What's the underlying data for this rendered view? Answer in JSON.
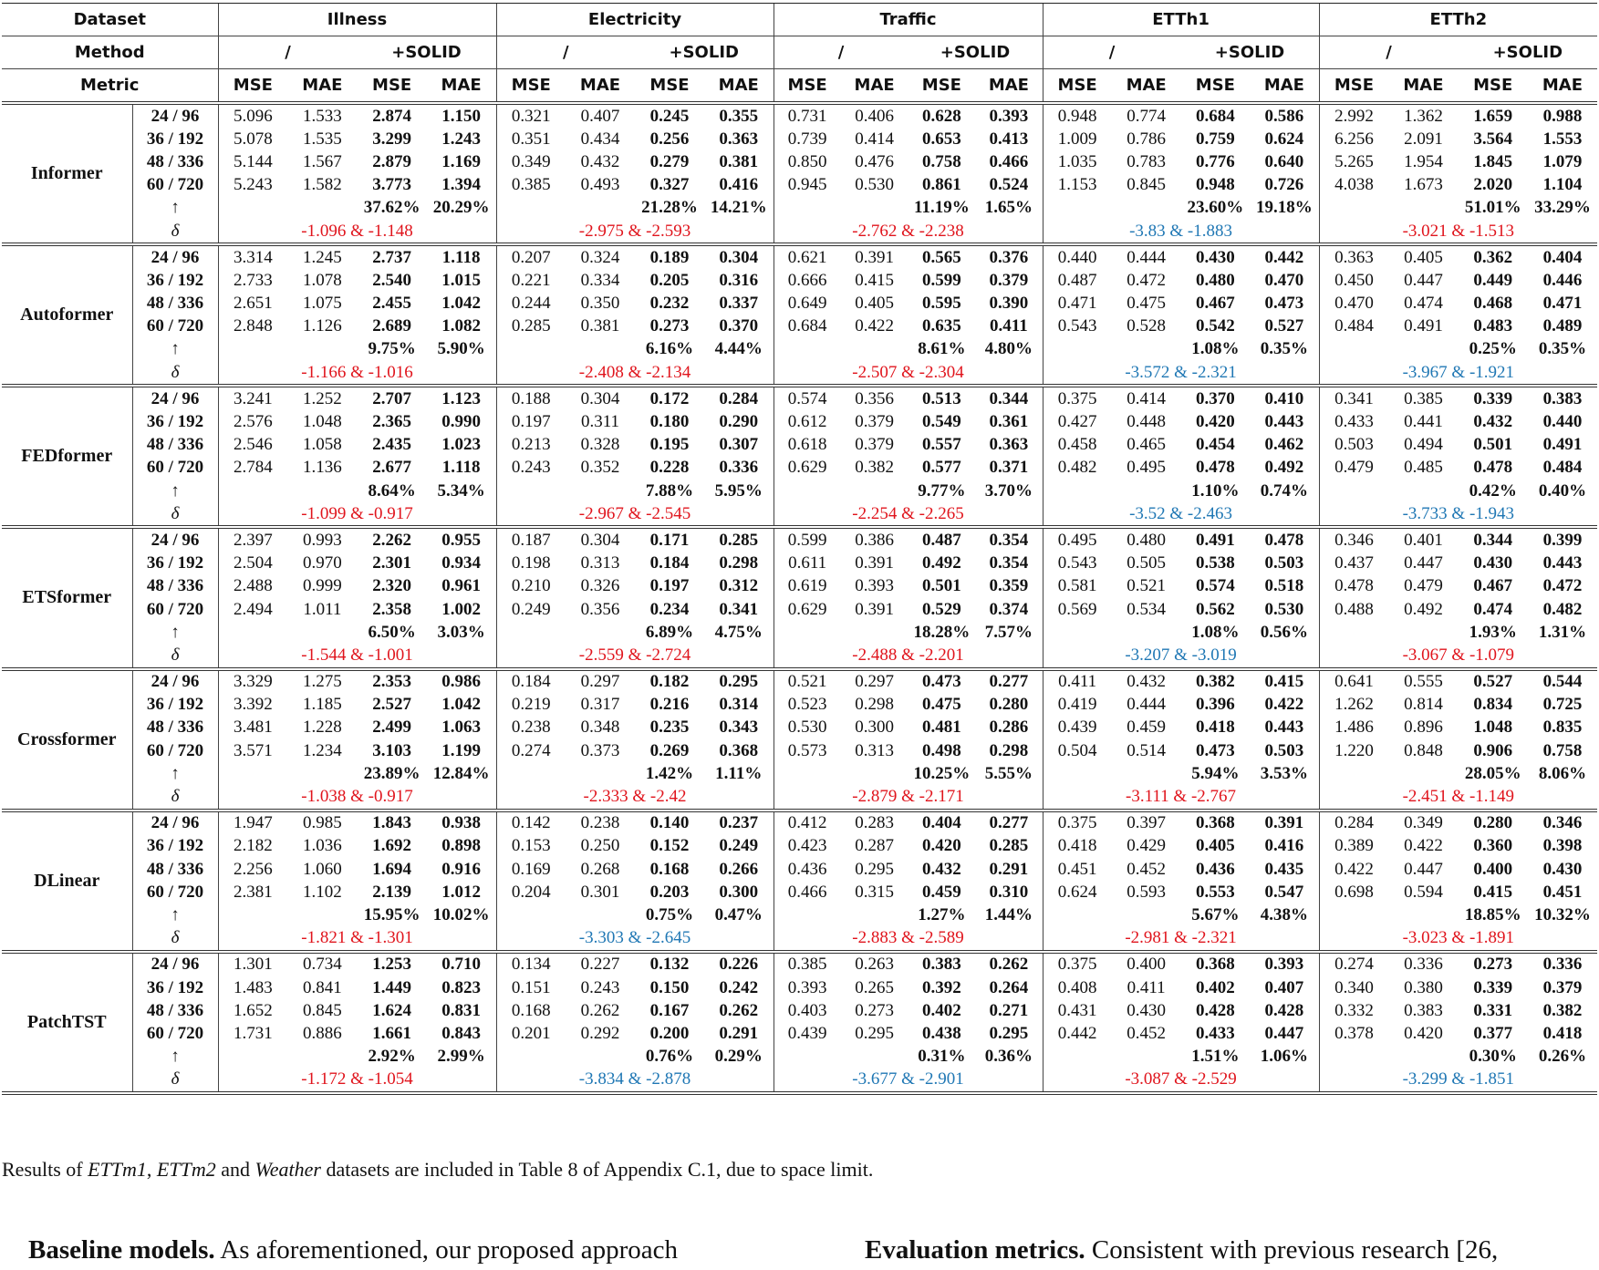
{
  "table": {
    "header": {
      "dataset_label": "Dataset",
      "datasets": [
        "Illness",
        "Electricity",
        "Traffic",
        "ETTh1",
        "ETTh2"
      ],
      "method_label": "Method",
      "methods": [
        "/",
        "+SOLID"
      ],
      "metric_label": "Metric",
      "metrics": [
        "MSE",
        "MAE",
        "MSE",
        "MAE"
      ]
    },
    "horizons": [
      "24 / 96",
      "36 / 192",
      "48 / 336",
      "60 / 720"
    ],
    "improve_symbol": "↑",
    "delta_symbol": "δ",
    "delta_colors": {
      "red": "#e0141c",
      "blue": "#1f77b4"
    },
    "models": [
      {
        "name": "Informer",
        "rows": [
          [
            "5.096",
            "1.533",
            "2.874",
            "1.150",
            "0.321",
            "0.407",
            "0.245",
            "0.355",
            "0.731",
            "0.406",
            "0.628",
            "0.393",
            "0.948",
            "0.774",
            "0.684",
            "0.586",
            "2.992",
            "1.362",
            "1.659",
            "0.988"
          ],
          [
            "5.078",
            "1.535",
            "3.299",
            "1.243",
            "0.351",
            "0.434",
            "0.256",
            "0.363",
            "0.739",
            "0.414",
            "0.653",
            "0.413",
            "1.009",
            "0.786",
            "0.759",
            "0.624",
            "6.256",
            "2.091",
            "3.564",
            "1.553"
          ],
          [
            "5.144",
            "1.567",
            "2.879",
            "1.169",
            "0.349",
            "0.432",
            "0.279",
            "0.381",
            "0.850",
            "0.476",
            "0.758",
            "0.466",
            "1.035",
            "0.783",
            "0.776",
            "0.640",
            "5.265",
            "1.954",
            "1.845",
            "1.079"
          ],
          [
            "5.243",
            "1.582",
            "3.773",
            "1.394",
            "0.385",
            "0.493",
            "0.327",
            "0.416",
            "0.945",
            "0.530",
            "0.861",
            "0.524",
            "1.153",
            "0.845",
            "0.948",
            "0.726",
            "4.038",
            "1.673",
            "2.020",
            "1.104"
          ]
        ],
        "improve": [
          [
            "37.62%",
            "20.29%"
          ],
          [
            "21.28%",
            "14.21%"
          ],
          [
            "11.19%",
            "1.65%"
          ],
          [
            "23.60%",
            "19.18%"
          ],
          [
            "51.01%",
            "33.29%"
          ]
        ],
        "delta": [
          {
            "text": "-1.096 & -1.148",
            "color": "red"
          },
          {
            "text": "-2.975 & -2.593",
            "color": "red"
          },
          {
            "text": "-2.762 & -2.238",
            "color": "red"
          },
          {
            "text": "-3.83 & -1.883",
            "color": "blue"
          },
          {
            "text": "-3.021 & -1.513",
            "color": "red"
          }
        ]
      },
      {
        "name": "Autoformer",
        "rows": [
          [
            "3.314",
            "1.245",
            "2.737",
            "1.118",
            "0.207",
            "0.324",
            "0.189",
            "0.304",
            "0.621",
            "0.391",
            "0.565",
            "0.376",
            "0.440",
            "0.444",
            "0.430",
            "0.442",
            "0.363",
            "0.405",
            "0.362",
            "0.404"
          ],
          [
            "2.733",
            "1.078",
            "2.540",
            "1.015",
            "0.221",
            "0.334",
            "0.205",
            "0.316",
            "0.666",
            "0.415",
            "0.599",
            "0.379",
            "0.487",
            "0.472",
            "0.480",
            "0.470",
            "0.450",
            "0.447",
            "0.449",
            "0.446"
          ],
          [
            "2.651",
            "1.075",
            "2.455",
            "1.042",
            "0.244",
            "0.350",
            "0.232",
            "0.337",
            "0.649",
            "0.405",
            "0.595",
            "0.390",
            "0.471",
            "0.475",
            "0.467",
            "0.473",
            "0.470",
            "0.474",
            "0.468",
            "0.471"
          ],
          [
            "2.848",
            "1.126",
            "2.689",
            "1.082",
            "0.285",
            "0.381",
            "0.273",
            "0.370",
            "0.684",
            "0.422",
            "0.635",
            "0.411",
            "0.543",
            "0.528",
            "0.542",
            "0.527",
            "0.484",
            "0.491",
            "0.483",
            "0.489"
          ]
        ],
        "improve": [
          [
            "9.75%",
            "5.90%"
          ],
          [
            "6.16%",
            "4.44%"
          ],
          [
            "8.61%",
            "4.80%"
          ],
          [
            "1.08%",
            "0.35%"
          ],
          [
            "0.25%",
            "0.35%"
          ]
        ],
        "delta": [
          {
            "text": "-1.166 & -1.016",
            "color": "red"
          },
          {
            "text": "-2.408 & -2.134",
            "color": "red"
          },
          {
            "text": "-2.507 & -2.304",
            "color": "red"
          },
          {
            "text": "-3.572 & -2.321",
            "color": "blue"
          },
          {
            "text": "-3.967 & -1.921",
            "color": "blue"
          }
        ]
      },
      {
        "name": "FEDformer",
        "rows": [
          [
            "3.241",
            "1.252",
            "2.707",
            "1.123",
            "0.188",
            "0.304",
            "0.172",
            "0.284",
            "0.574",
            "0.356",
            "0.513",
            "0.344",
            "0.375",
            "0.414",
            "0.370",
            "0.410",
            "0.341",
            "0.385",
            "0.339",
            "0.383"
          ],
          [
            "2.576",
            "1.048",
            "2.365",
            "0.990",
            "0.197",
            "0.311",
            "0.180",
            "0.290",
            "0.612",
            "0.379",
            "0.549",
            "0.361",
            "0.427",
            "0.448",
            "0.420",
            "0.443",
            "0.433",
            "0.441",
            "0.432",
            "0.440"
          ],
          [
            "2.546",
            "1.058",
            "2.435",
            "1.023",
            "0.213",
            "0.328",
            "0.195",
            "0.307",
            "0.618",
            "0.379",
            "0.557",
            "0.363",
            "0.458",
            "0.465",
            "0.454",
            "0.462",
            "0.503",
            "0.494",
            "0.501",
            "0.491"
          ],
          [
            "2.784",
            "1.136",
            "2.677",
            "1.118",
            "0.243",
            "0.352",
            "0.228",
            "0.336",
            "0.629",
            "0.382",
            "0.577",
            "0.371",
            "0.482",
            "0.495",
            "0.478",
            "0.492",
            "0.479",
            "0.485",
            "0.478",
            "0.484"
          ]
        ],
        "improve": [
          [
            "8.64%",
            "5.34%"
          ],
          [
            "7.88%",
            "5.95%"
          ],
          [
            "9.77%",
            "3.70%"
          ],
          [
            "1.10%",
            "0.74%"
          ],
          [
            "0.42%",
            "0.40%"
          ]
        ],
        "delta": [
          {
            "text": "-1.099 & -0.917",
            "color": "red"
          },
          {
            "text": "-2.967 & -2.545",
            "color": "red"
          },
          {
            "text": "-2.254 & -2.265",
            "color": "red"
          },
          {
            "text": "-3.52 & -2.463",
            "color": "blue"
          },
          {
            "text": "-3.733 & -1.943",
            "color": "blue"
          }
        ]
      },
      {
        "name": "ETSformer",
        "rows": [
          [
            "2.397",
            "0.993",
            "2.262",
            "0.955",
            "0.187",
            "0.304",
            "0.171",
            "0.285",
            "0.599",
            "0.386",
            "0.487",
            "0.354",
            "0.495",
            "0.480",
            "0.491",
            "0.478",
            "0.346",
            "0.401",
            "0.344",
            "0.399"
          ],
          [
            "2.504",
            "0.970",
            "2.301",
            "0.934",
            "0.198",
            "0.313",
            "0.184",
            "0.298",
            "0.611",
            "0.391",
            "0.492",
            "0.354",
            "0.543",
            "0.505",
            "0.538",
            "0.503",
            "0.437",
            "0.447",
            "0.430",
            "0.443"
          ],
          [
            "2.488",
            "0.999",
            "2.320",
            "0.961",
            "0.210",
            "0.326",
            "0.197",
            "0.312",
            "0.619",
            "0.393",
            "0.501",
            "0.359",
            "0.581",
            "0.521",
            "0.574",
            "0.518",
            "0.478",
            "0.479",
            "0.467",
            "0.472"
          ],
          [
            "2.494",
            "1.011",
            "2.358",
            "1.002",
            "0.249",
            "0.356",
            "0.234",
            "0.341",
            "0.629",
            "0.391",
            "0.529",
            "0.374",
            "0.569",
            "0.534",
            "0.562",
            "0.530",
            "0.488",
            "0.492",
            "0.474",
            "0.482"
          ]
        ],
        "improve": [
          [
            "6.50%",
            "3.03%"
          ],
          [
            "6.89%",
            "4.75%"
          ],
          [
            "18.28%",
            "7.57%"
          ],
          [
            "1.08%",
            "0.56%"
          ],
          [
            "1.93%",
            "1.31%"
          ]
        ],
        "delta": [
          {
            "text": "-1.544 & -1.001",
            "color": "red"
          },
          {
            "text": "-2.559 & -2.724",
            "color": "red"
          },
          {
            "text": "-2.488 & -2.201",
            "color": "red"
          },
          {
            "text": "-3.207 & -3.019",
            "color": "blue"
          },
          {
            "text": "-3.067 & -1.079",
            "color": "red"
          }
        ]
      },
      {
        "name": "Crossformer",
        "rows": [
          [
            "3.329",
            "1.275",
            "2.353",
            "0.986",
            "0.184",
            "0.297",
            "0.182",
            "0.295",
            "0.521",
            "0.297",
            "0.473",
            "0.277",
            "0.411",
            "0.432",
            "0.382",
            "0.415",
            "0.641",
            "0.555",
            "0.527",
            "0.544"
          ],
          [
            "3.392",
            "1.185",
            "2.527",
            "1.042",
            "0.219",
            "0.317",
            "0.216",
            "0.314",
            "0.523",
            "0.298",
            "0.475",
            "0.280",
            "0.419",
            "0.444",
            "0.396",
            "0.422",
            "1.262",
            "0.814",
            "0.834",
            "0.725"
          ],
          [
            "3.481",
            "1.228",
            "2.499",
            "1.063",
            "0.238",
            "0.348",
            "0.235",
            "0.343",
            "0.530",
            "0.300",
            "0.481",
            "0.286",
            "0.439",
            "0.459",
            "0.418",
            "0.443",
            "1.486",
            "0.896",
            "1.048",
            "0.835"
          ],
          [
            "3.571",
            "1.234",
            "3.103",
            "1.199",
            "0.274",
            "0.373",
            "0.269",
            "0.368",
            "0.573",
            "0.313",
            "0.498",
            "0.298",
            "0.504",
            "0.514",
            "0.473",
            "0.503",
            "1.220",
            "0.848",
            "0.906",
            "0.758"
          ]
        ],
        "improve": [
          [
            "23.89%",
            "12.84%"
          ],
          [
            "1.42%",
            "1.11%"
          ],
          [
            "10.25%",
            "5.55%"
          ],
          [
            "5.94%",
            "3.53%"
          ],
          [
            "28.05%",
            "8.06%"
          ]
        ],
        "delta": [
          {
            "text": "-1.038 & -0.917",
            "color": "red"
          },
          {
            "text": "-2.333 & -2.42",
            "color": "red"
          },
          {
            "text": "-2.879 & -2.171",
            "color": "red"
          },
          {
            "text": "-3.111 & -2.767",
            "color": "red"
          },
          {
            "text": "-2.451 & -1.149",
            "color": "red"
          }
        ]
      },
      {
        "name": "DLinear",
        "rows": [
          [
            "1.947",
            "0.985",
            "1.843",
            "0.938",
            "0.142",
            "0.238",
            "0.140",
            "0.237",
            "0.412",
            "0.283",
            "0.404",
            "0.277",
            "0.375",
            "0.397",
            "0.368",
            "0.391",
            "0.284",
            "0.349",
            "0.280",
            "0.346"
          ],
          [
            "2.182",
            "1.036",
            "1.692",
            "0.898",
            "0.153",
            "0.250",
            "0.152",
            "0.249",
            "0.423",
            "0.287",
            "0.420",
            "0.285",
            "0.418",
            "0.429",
            "0.405",
            "0.416",
            "0.389",
            "0.422",
            "0.360",
            "0.398"
          ],
          [
            "2.256",
            "1.060",
            "1.694",
            "0.916",
            "0.169",
            "0.268",
            "0.168",
            "0.266",
            "0.436",
            "0.295",
            "0.432",
            "0.291",
            "0.451",
            "0.452",
            "0.436",
            "0.435",
            "0.422",
            "0.447",
            "0.400",
            "0.430"
          ],
          [
            "2.381",
            "1.102",
            "2.139",
            "1.012",
            "0.204",
            "0.301",
            "0.203",
            "0.300",
            "0.466",
            "0.315",
            "0.459",
            "0.310",
            "0.624",
            "0.593",
            "0.553",
            "0.547",
            "0.698",
            "0.594",
            "0.415",
            "0.451"
          ]
        ],
        "improve": [
          [
            "15.95%",
            "10.02%"
          ],
          [
            "0.75%",
            "0.47%"
          ],
          [
            "1.27%",
            "1.44%"
          ],
          [
            "5.67%",
            "4.38%"
          ],
          [
            "18.85%",
            "10.32%"
          ]
        ],
        "delta": [
          {
            "text": "-1.821 & -1.301",
            "color": "red"
          },
          {
            "text": "-3.303 & -2.645",
            "color": "blue"
          },
          {
            "text": "-2.883 & -2.589",
            "color": "red"
          },
          {
            "text": "-2.981 & -2.321",
            "color": "red"
          },
          {
            "text": "-3.023 & -1.891",
            "color": "red"
          }
        ]
      },
      {
        "name": "PatchTST",
        "rows": [
          [
            "1.301",
            "0.734",
            "1.253",
            "0.710",
            "0.134",
            "0.227",
            "0.132",
            "0.226",
            "0.385",
            "0.263",
            "0.383",
            "0.262",
            "0.375",
            "0.400",
            "0.368",
            "0.393",
            "0.274",
            "0.336",
            "0.273",
            "0.336"
          ],
          [
            "1.483",
            "0.841",
            "1.449",
            "0.823",
            "0.151",
            "0.243",
            "0.150",
            "0.242",
            "0.393",
            "0.265",
            "0.392",
            "0.264",
            "0.408",
            "0.411",
            "0.402",
            "0.407",
            "0.340",
            "0.380",
            "0.339",
            "0.379"
          ],
          [
            "1.652",
            "0.845",
            "1.624",
            "0.831",
            "0.168",
            "0.262",
            "0.167",
            "0.262",
            "0.403",
            "0.273",
            "0.402",
            "0.271",
            "0.431",
            "0.430",
            "0.428",
            "0.428",
            "0.332",
            "0.383",
            "0.331",
            "0.382"
          ],
          [
            "1.731",
            "0.886",
            "1.661",
            "0.843",
            "0.201",
            "0.292",
            "0.200",
            "0.291",
            "0.439",
            "0.295",
            "0.438",
            "0.295",
            "0.442",
            "0.452",
            "0.433",
            "0.447",
            "0.378",
            "0.420",
            "0.377",
            "0.418"
          ]
        ],
        "improve": [
          [
            "2.92%",
            "2.99%"
          ],
          [
            "0.76%",
            "0.29%"
          ],
          [
            "0.31%",
            "0.36%"
          ],
          [
            "1.51%",
            "1.06%"
          ],
          [
            "0.30%",
            "0.26%"
          ]
        ],
        "delta": [
          {
            "text": "-1.172 & -1.054",
            "color": "red"
          },
          {
            "text": "-3.834 & -2.878",
            "color": "blue"
          },
          {
            "text": "-3.677 & -2.901",
            "color": "blue"
          },
          {
            "text": "-3.087 & -2.529",
            "color": "red"
          },
          {
            "text": "-3.299 & -1.851",
            "color": "blue"
          }
        ]
      }
    ]
  },
  "caption": [
    "Results of ",
    "ETTm1",
    ", ",
    "ETTm2",
    " and ",
    "Weather",
    " datasets are included in Table 8 of Appendix C.1, due to space limit."
  ],
  "paragraphs": [
    {
      "heading": "Baseline models.",
      "text": " As aforementioned, our proposed approach"
    },
    {
      "heading": "Evaluation metrics.",
      "text": " Consistent with previous research [26,"
    }
  ]
}
